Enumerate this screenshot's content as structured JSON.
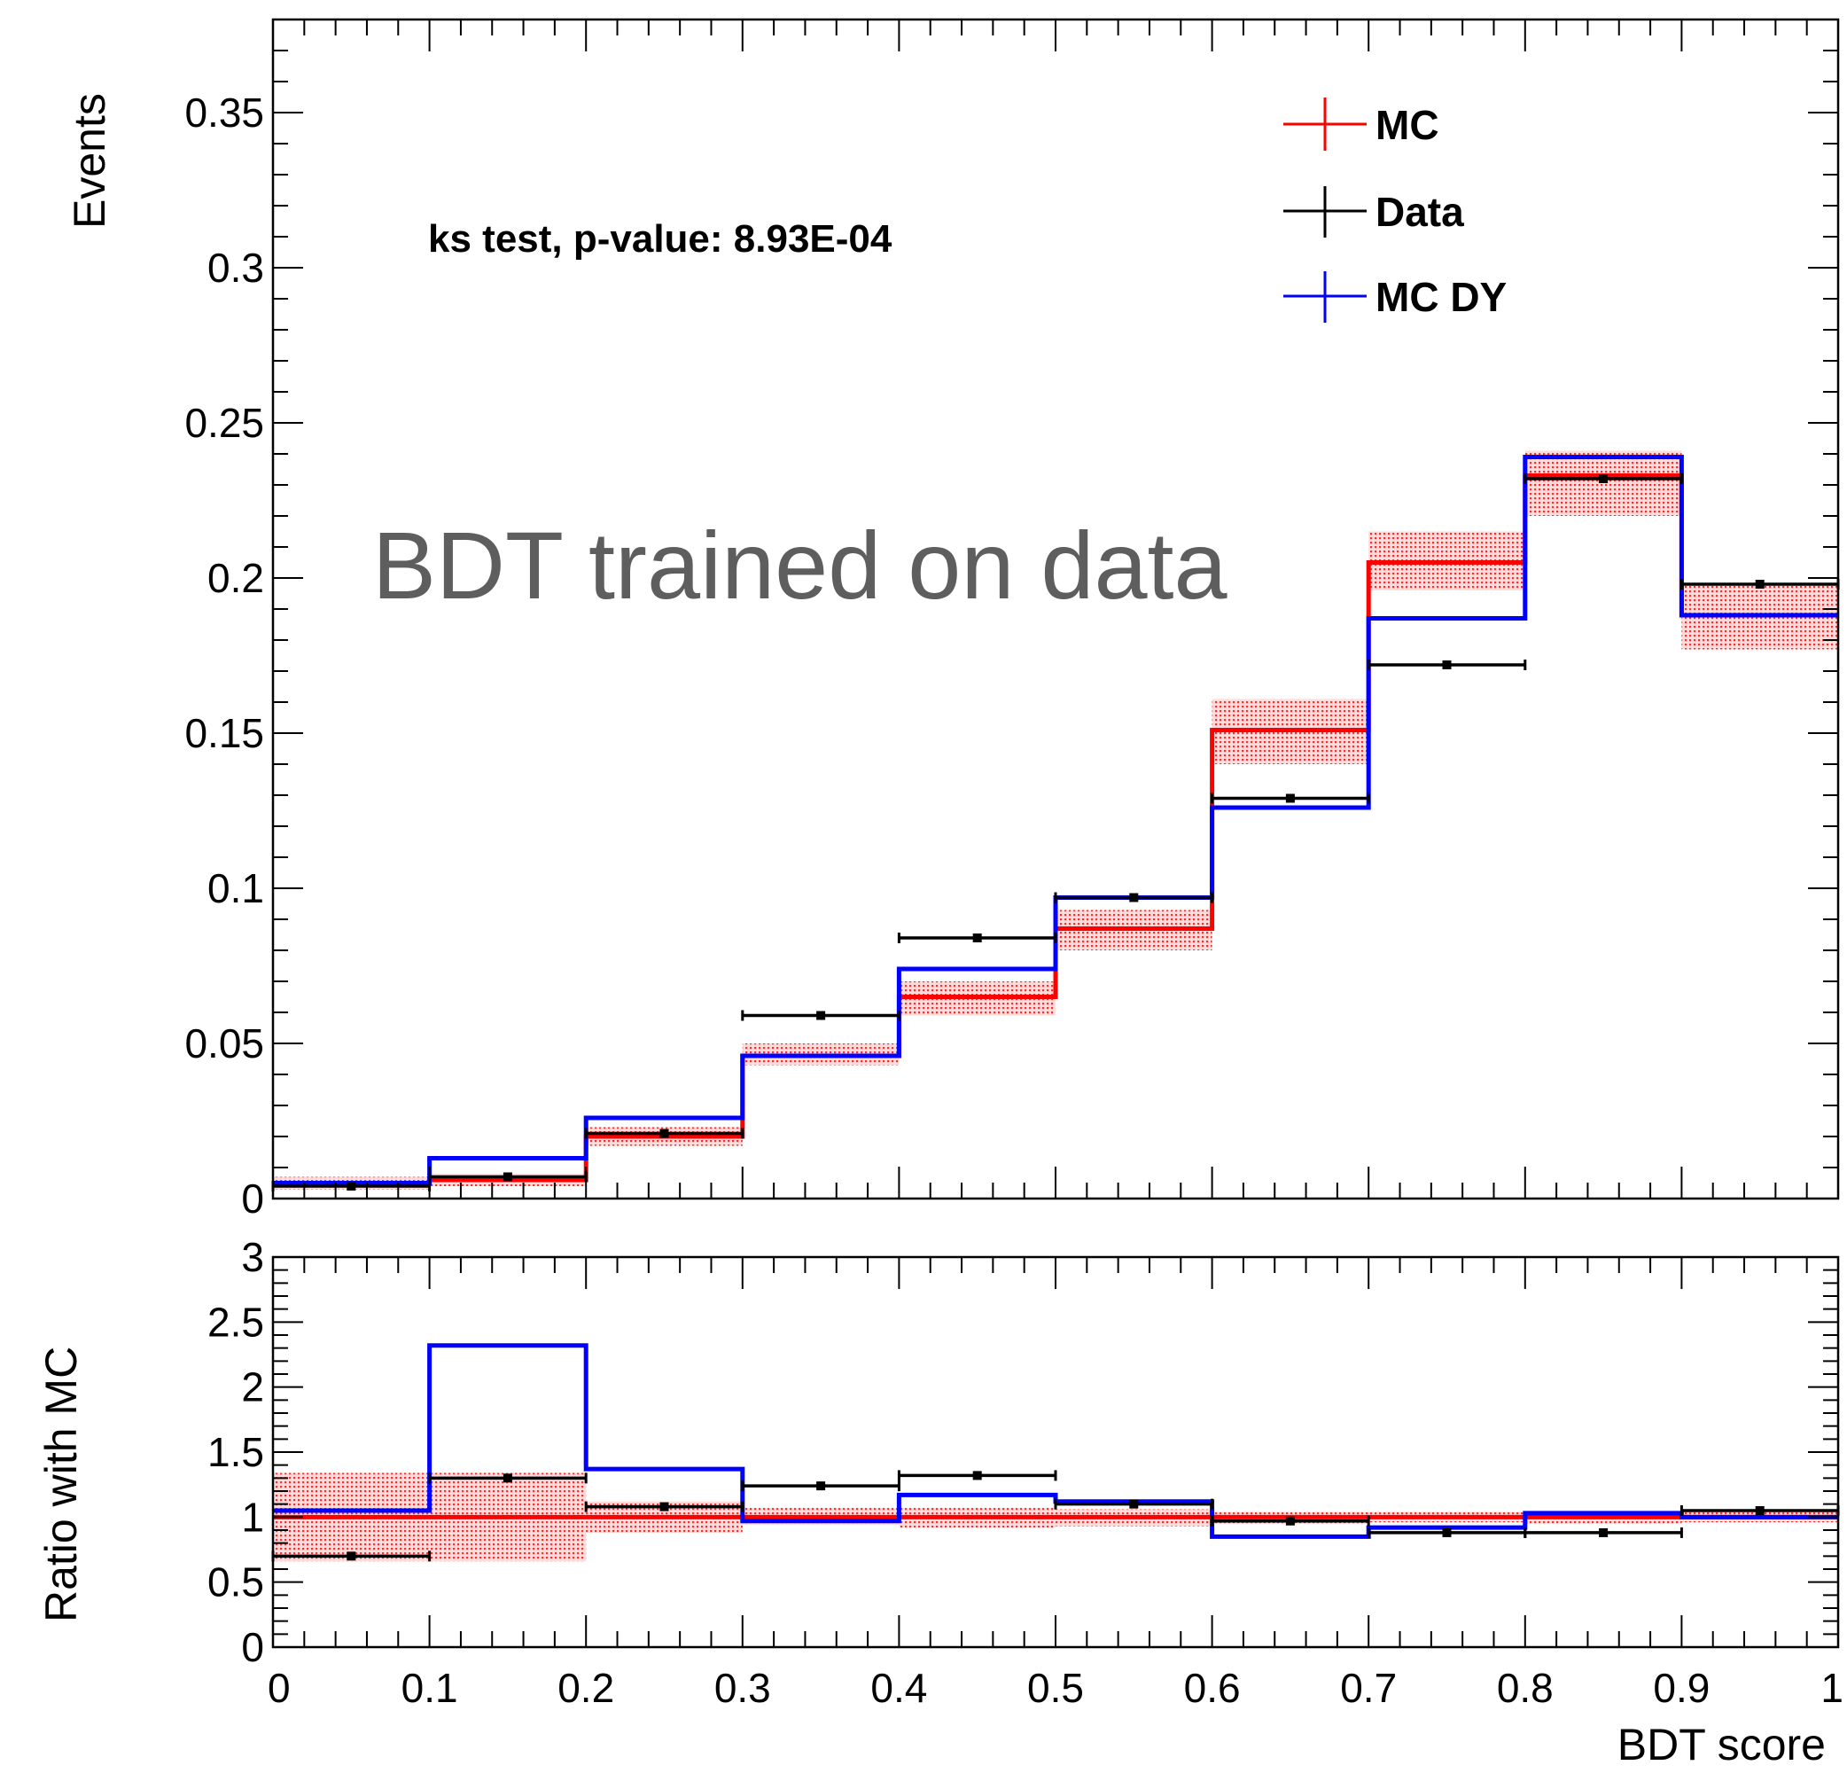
{
  "overlay_note": "BDT trained on data",
  "chart_data": [
    {
      "type": "histogram",
      "panel": "main",
      "ylabel": "Events",
      "ylim": [
        0,
        0.38
      ],
      "y_ticks": [
        "0",
        "0.05",
        "0.1",
        "0.15",
        "0.2",
        "0.25",
        "0.3",
        "0.35"
      ],
      "x_bin_edges": [
        0,
        0.1,
        0.2,
        0.3,
        0.4,
        0.5,
        0.6,
        0.7,
        0.8,
        0.9,
        1.0
      ],
      "annotation": "ks test, p-value: 8.93E-04",
      "legend": {
        "placement": "top-right",
        "entries": [
          "MC",
          "Data",
          "MC DY"
        ]
      },
      "colors": {
        "MC": "#ff0000",
        "Data": "#000000",
        "MC DY": "#0000ff",
        "band": "#ff0000"
      },
      "series": [
        {
          "name": "MC",
          "style": "step",
          "values": [
            0.005,
            0.006,
            0.02,
            0.046,
            0.065,
            0.087,
            0.151,
            0.205,
            0.233,
            0.188
          ],
          "band_low": [
            0.003,
            0.004,
            0.017,
            0.043,
            0.059,
            0.08,
            0.14,
            0.196,
            0.22,
            0.177
          ],
          "band_high": [
            0.007,
            0.008,
            0.023,
            0.05,
            0.07,
            0.093,
            0.161,
            0.215,
            0.241,
            0.198
          ]
        },
        {
          "name": "Data",
          "style": "points",
          "x": [
            0.05,
            0.15,
            0.25,
            0.35,
            0.45,
            0.55,
            0.65,
            0.75,
            0.85,
            0.95
          ],
          "values": [
            0.004,
            0.007,
            0.021,
            0.059,
            0.084,
            0.097,
            0.129,
            0.172,
            0.232,
            0.198
          ],
          "xerr": 0.05
        },
        {
          "name": "MC DY",
          "style": "step",
          "values": [
            0.005,
            0.013,
            0.026,
            0.046,
            0.074,
            0.097,
            0.126,
            0.187,
            0.239,
            0.188
          ]
        }
      ]
    },
    {
      "type": "histogram",
      "panel": "ratio",
      "ylabel": "Ratio with MC",
      "xlabel": "BDT score",
      "ylim": [
        0,
        3
      ],
      "y_ticks": [
        "0",
        "0.5",
        "1",
        "1.5",
        "2",
        "2.5",
        "3"
      ],
      "x_ticks": [
        "0",
        "0.1",
        "0.2",
        "0.3",
        "0.4",
        "0.5",
        "0.6",
        "0.7",
        "0.8",
        "0.9",
        "1"
      ],
      "x_bin_edges": [
        0,
        0.1,
        0.2,
        0.3,
        0.4,
        0.5,
        0.6,
        0.7,
        0.8,
        0.9,
        1.0
      ],
      "series": [
        {
          "name": "MC",
          "style": "step",
          "values": [
            1,
            1,
            1,
            1,
            1,
            1,
            1,
            1,
            1,
            1
          ],
          "band_low": [
            0.66,
            0.66,
            0.88,
            0.94,
            0.92,
            0.93,
            0.95,
            0.96,
            0.95,
            0.96
          ],
          "band_high": [
            1.34,
            1.34,
            1.12,
            1.07,
            1.07,
            1.06,
            1.04,
            1.04,
            1.04,
            1.04
          ]
        },
        {
          "name": "Data",
          "style": "points",
          "x": [
            0.05,
            0.15,
            0.25,
            0.35,
            0.45,
            0.55,
            0.65,
            0.75,
            0.85,
            0.95
          ],
          "values": [
            0.7,
            1.3,
            1.08,
            1.24,
            1.32,
            1.1,
            0.97,
            0.88,
            0.88,
            1.05
          ],
          "xerr": 0.05
        },
        {
          "name": "MC DY",
          "style": "step",
          "values": [
            1.05,
            2.32,
            1.37,
            0.97,
            1.17,
            1.12,
            0.85,
            0.92,
            1.03,
            1.0
          ]
        }
      ]
    }
  ]
}
